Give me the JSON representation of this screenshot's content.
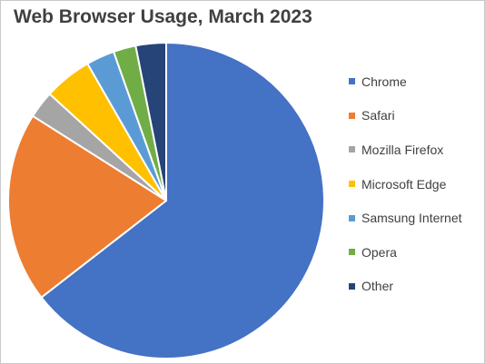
{
  "chart_data": {
    "type": "pie",
    "title": "Web Browser Usage, March 2023",
    "legend_position": "right",
    "slices": [
      {
        "label": "Chrome",
        "value": 64.5,
        "color": "#4472C4"
      },
      {
        "label": "Safari",
        "value": 19.5,
        "color": "#ED7D31"
      },
      {
        "label": "Mozilla Firefox",
        "value": 2.8,
        "color": "#A5A5A5"
      },
      {
        "label": "Microsoft Edge",
        "value": 4.9,
        "color": "#FFC000"
      },
      {
        "label": "Samsung Internet",
        "value": 2.9,
        "color": "#5B9BD5"
      },
      {
        "label": "Opera",
        "value": 2.3,
        "color": "#70AD47"
      },
      {
        "label": "Other",
        "value": 3.1,
        "color": "#264478"
      }
    ]
  }
}
